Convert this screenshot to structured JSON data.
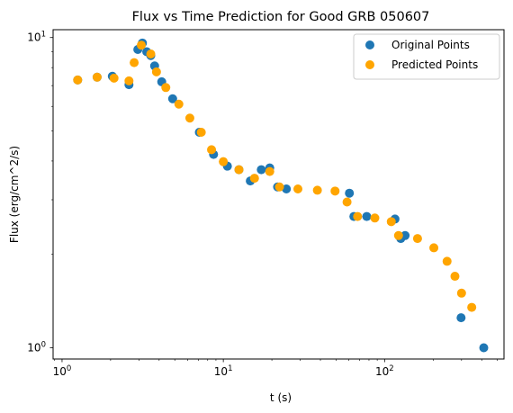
{
  "chart_data": {
    "type": "scatter",
    "title": "Flux vs Time Prediction for Good GRB 050607",
    "xlabel": "t (s)",
    "ylabel": "Flux (erg/cm^2/s)",
    "x_scale": "log",
    "y_scale": "log",
    "xlim": [
      0.88,
      550
    ],
    "ylim": [
      0.92,
      10.6
    ],
    "grid": false,
    "legend_position": "top-right",
    "x_ticks": [
      {
        "value": 1,
        "base": "10",
        "exp": "0"
      },
      {
        "value": 10,
        "base": "10",
        "exp": "1"
      },
      {
        "value": 100,
        "base": "10",
        "exp": "2"
      }
    ],
    "y_ticks": [
      {
        "value": 1,
        "base": "10",
        "exp": "0"
      },
      {
        "value": 10,
        "base": "10",
        "exp": "1"
      }
    ],
    "series": [
      {
        "name": "Original Points",
        "color": "#1f77b4",
        "points": [
          [
            1.25,
            7.3
          ],
          [
            1.65,
            7.45
          ],
          [
            2.05,
            7.5
          ],
          [
            2.6,
            7.05
          ],
          [
            2.95,
            9.15
          ],
          [
            3.15,
            9.6
          ],
          [
            3.35,
            9.0
          ],
          [
            3.55,
            8.75
          ],
          [
            3.75,
            8.1
          ],
          [
            4.15,
            7.2
          ],
          [
            4.85,
            6.35
          ],
          [
            7.1,
            4.95
          ],
          [
            8.7,
            4.2
          ],
          [
            10.6,
            3.85
          ],
          [
            12.5,
            3.75
          ],
          [
            14.7,
            3.45
          ],
          [
            17.2,
            3.75
          ],
          [
            19.4,
            3.8
          ],
          [
            21.7,
            3.3
          ],
          [
            24.6,
            3.25
          ],
          [
            60.5,
            3.15
          ],
          [
            64.5,
            2.65
          ],
          [
            77.5,
            2.65
          ],
          [
            116,
            2.6
          ],
          [
            126,
            2.25
          ],
          [
            134,
            2.3
          ],
          [
            298,
            1.25
          ],
          [
            412,
            1.0
          ]
        ]
      },
      {
        "name": "Predicted Points",
        "color": "#ffa500",
        "points": [
          [
            1.25,
            7.3
          ],
          [
            1.65,
            7.45
          ],
          [
            2.1,
            7.4
          ],
          [
            2.6,
            7.25
          ],
          [
            2.8,
            8.3
          ],
          [
            3.1,
            9.45
          ],
          [
            3.55,
            8.85
          ],
          [
            3.85,
            7.75
          ],
          [
            4.4,
            6.9
          ],
          [
            5.3,
            6.1
          ],
          [
            6.2,
            5.5
          ],
          [
            7.3,
            4.95
          ],
          [
            8.45,
            4.35
          ],
          [
            10.0,
            3.98
          ],
          [
            12.5,
            3.75
          ],
          [
            15.6,
            3.52
          ],
          [
            19.4,
            3.7
          ],
          [
            22.3,
            3.3
          ],
          [
            29.0,
            3.25
          ],
          [
            38.3,
            3.22
          ],
          [
            49.3,
            3.2
          ],
          [
            58.5,
            2.95
          ],
          [
            68.0,
            2.65
          ],
          [
            87.0,
            2.62
          ],
          [
            110,
            2.55
          ],
          [
            122,
            2.3
          ],
          [
            160,
            2.25
          ],
          [
            202,
            2.1
          ],
          [
            244,
            1.9
          ],
          [
            273,
            1.7
          ],
          [
            300,
            1.5
          ],
          [
            347,
            1.35
          ]
        ]
      }
    ]
  }
}
